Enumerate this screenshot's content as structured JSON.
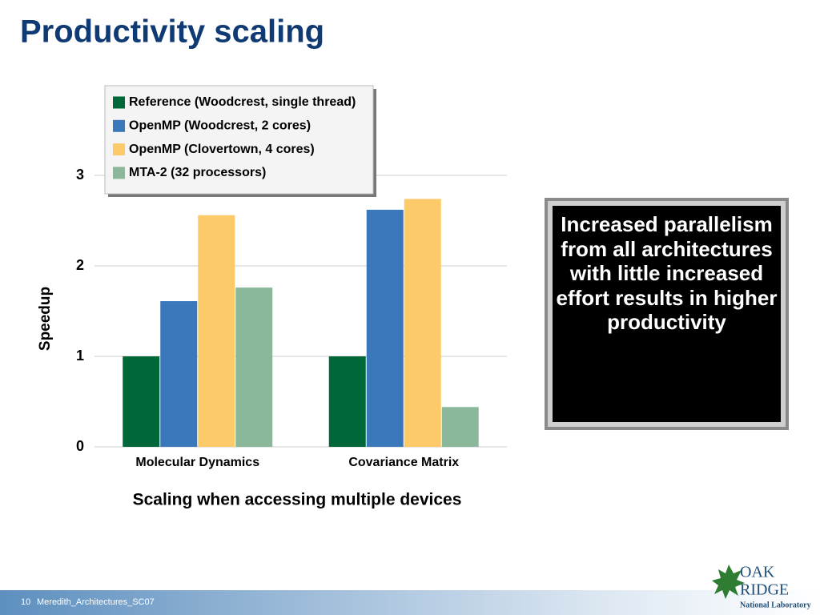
{
  "slide": {
    "page_number": "10",
    "footer": "Meredith_Architectures_SC07",
    "logo": [
      "OAK",
      "RIDGE",
      "National Laboratory"
    ]
  },
  "chart_data": {
    "type": "bar",
    "title": "Productivity scaling",
    "x_label": "Scaling when accessing multiple devices",
    "y_label": "Speedup",
    "annotation": "Increased parallelism from all architectures with little increased effort results in higher productivity",
    "categories": [
      "Molecular Dynamics",
      "Covariance Matrix"
    ],
    "series": [
      {
        "name": "Reference (Woodcrest, single thread)",
        "color": "#006838",
        "values": [
          1.0,
          1.0
        ]
      },
      {
        "name": "OpenMP (Woodcrest, 2 cores)",
        "color": "#3b78bb",
        "values": [
          1.61,
          2.62
        ]
      },
      {
        "name": "OpenMP (Clovertown, 4 cores)",
        "color": "#fdca6a",
        "values": [
          2.56,
          2.74
        ]
      },
      {
        "name": "MTA-2 (32 processors)",
        "color": "#8bb89a",
        "values": [
          1.76,
          0.44
        ]
      }
    ],
    "ylim": [
      0,
      3
    ],
    "yticks": [
      0,
      1,
      2,
      3
    ],
    "grid": true,
    "legend": "upper left"
  }
}
